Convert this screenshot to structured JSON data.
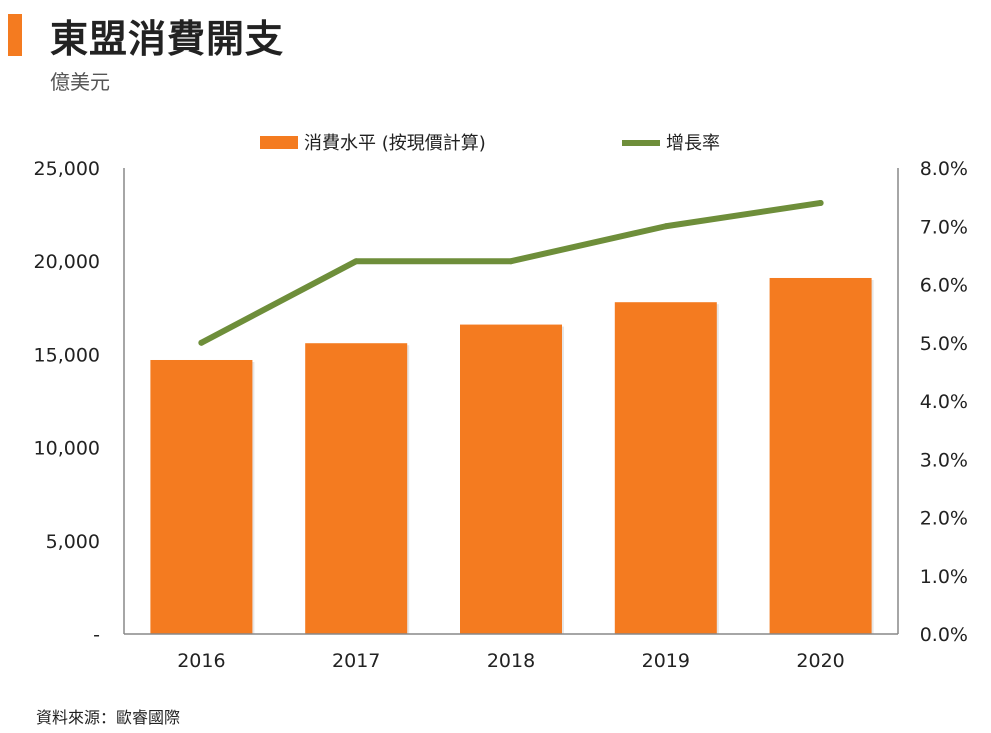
{
  "header": {
    "title": "東盟消費開支",
    "subtitle": "億美元"
  },
  "footer": {
    "source": "資料來源：歐睿國際"
  },
  "colors": {
    "accent": "#f47b20",
    "bar": "#f47b20",
    "line": "#6e8e3a",
    "axis": "#888888"
  },
  "chart_data": {
    "type": "bar",
    "categories": [
      "2016",
      "2017",
      "2018",
      "2019",
      "2020"
    ],
    "series": [
      {
        "name": "消費水平 (按現價計算)",
        "type": "bar",
        "axis": "left",
        "values": [
          14700,
          15600,
          16600,
          17800,
          19100
        ]
      },
      {
        "name": "增長率",
        "type": "line",
        "axis": "right",
        "values": [
          5.0,
          6.4,
          6.4,
          7.0,
          7.4
        ]
      }
    ],
    "y_left": {
      "range": [
        0,
        25000
      ],
      "ticks": [
        0,
        5000,
        10000,
        15000,
        20000,
        25000
      ],
      "tick_labels": [
        "-",
        "5,000",
        "10,000",
        "15,000",
        "20,000",
        "25,000"
      ]
    },
    "y_right": {
      "range": [
        0,
        8
      ],
      "ticks": [
        0,
        1,
        2,
        3,
        4,
        5,
        6,
        7,
        8
      ],
      "tick_labels": [
        "0.0%",
        "1.0%",
        "2.0%",
        "3.0%",
        "4.0%",
        "5.0%",
        "6.0%",
        "7.0%",
        "8.0%"
      ]
    },
    "legend_position": "top-center",
    "grid": false
  }
}
